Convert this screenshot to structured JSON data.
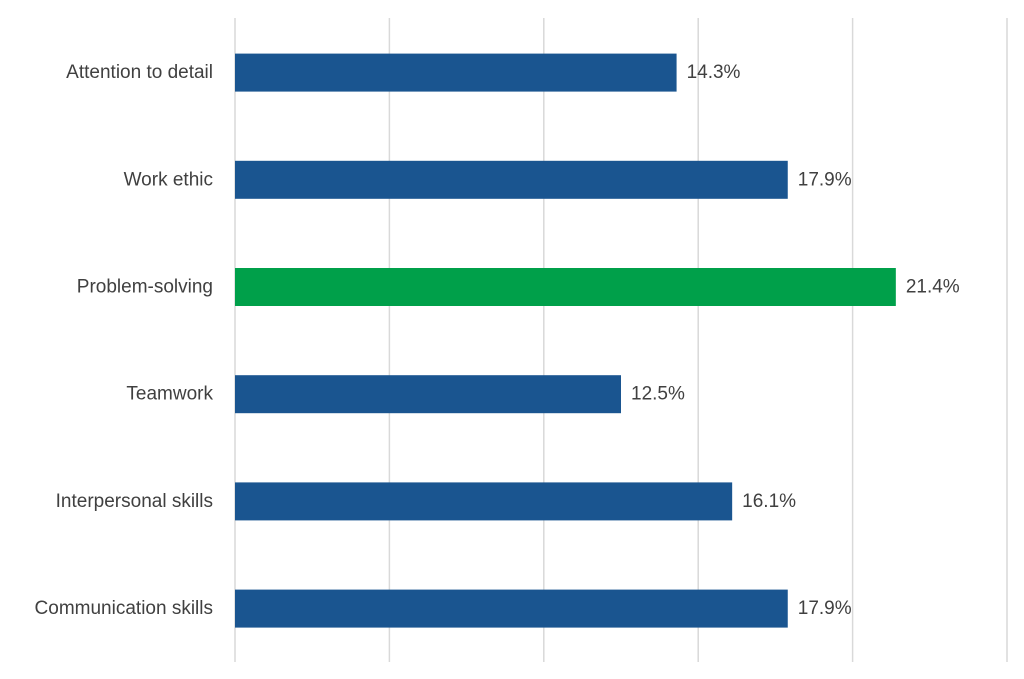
{
  "chart_data": {
    "type": "bar",
    "orientation": "horizontal",
    "categories": [
      "Attention to detail",
      "Work ethic",
      "Problem-solving",
      "Teamwork",
      "Interpersonal skills",
      "Communication skills"
    ],
    "values": [
      14.3,
      17.9,
      21.4,
      12.5,
      16.1,
      17.9
    ],
    "value_labels": [
      "14.3%",
      "17.9%",
      "21.4%",
      "12.5%",
      "16.1%",
      "17.9%"
    ],
    "value_unit": "%",
    "xlim": [
      0,
      25
    ],
    "x_gridline_step": 5,
    "grid": true,
    "legend": "none",
    "title": "",
    "xlabel": "",
    "ylabel": "",
    "colors": {
      "default": "#1a5590",
      "highlight": "#00a04a",
      "highlight_category": "Problem-solving"
    }
  }
}
